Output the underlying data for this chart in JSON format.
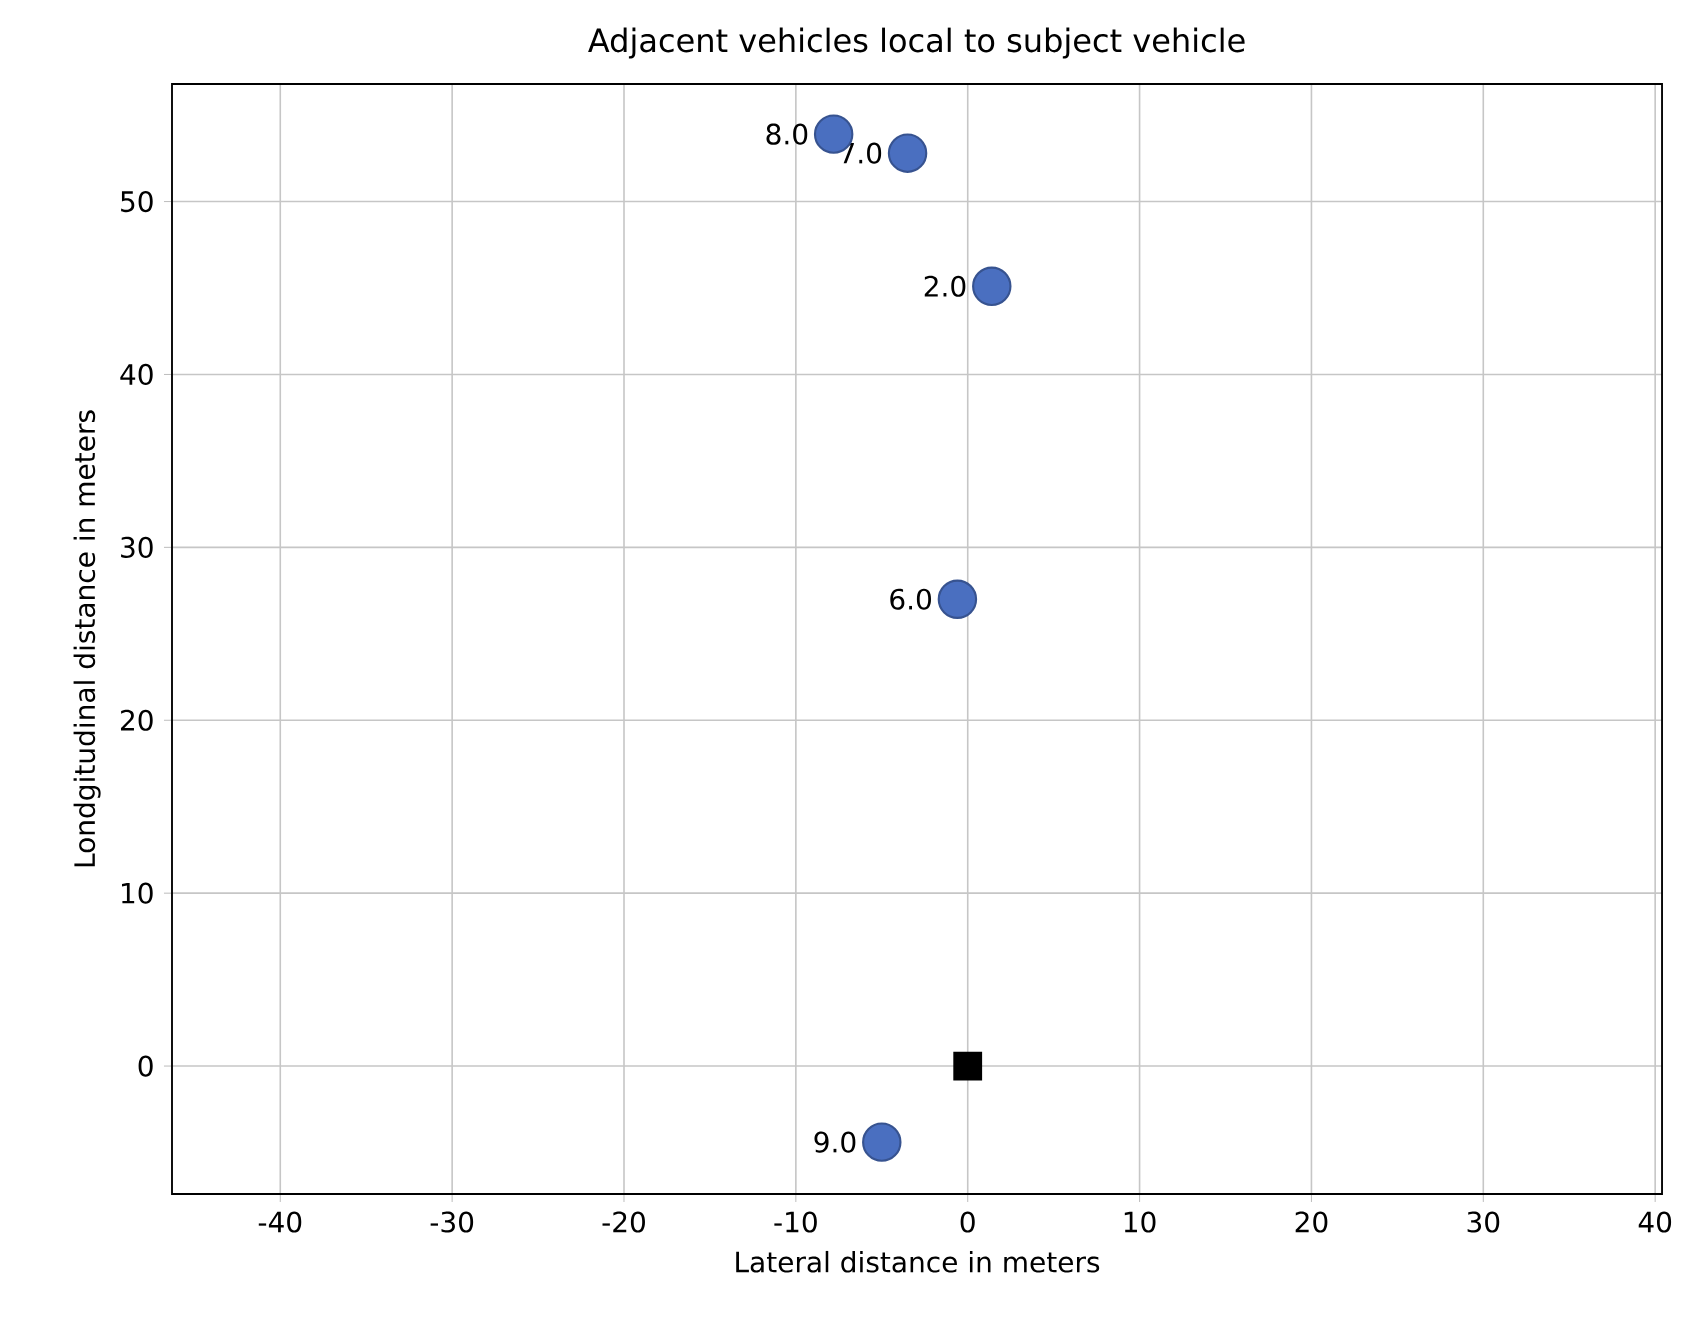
{
  "chart_data": {
    "type": "scatter",
    "title": "Adjacent vehicles local to subject vehicle",
    "xlabel": "Lateral distance in meters",
    "ylabel": "Londgitudinal distance in meters",
    "series": [
      {
        "color": "#4a6fc0",
        "marker": "circle",
        "x": [
          -7.8,
          -3.5,
          1.4,
          -0.6,
          -5.0
        ],
        "values": [
          53.9,
          52.8,
          45.1,
          27.0,
          -4.4
        ]
      },
      {
        "color": "#000000",
        "marker": "square",
        "x": [
          0
        ],
        "values": [
          0
        ]
      }
    ],
    "annotations": [
      {
        "text": "8.0",
        "x": -7.8,
        "y": 53.9
      },
      {
        "text": "7.0",
        "x": -3.5,
        "y": 52.8
      },
      {
        "text": "2.0",
        "x": 1.4,
        "y": 45.1
      },
      {
        "text": "6.0",
        "x": -0.6,
        "y": 27.0
      },
      {
        "text": "9.0",
        "x": -5.0,
        "y": -4.4
      }
    ],
    "xlim": [
      -46.3,
      40.4
    ],
    "ylim": [
      -7.4,
      56.8
    ],
    "xticks": [
      -40,
      -30,
      -20,
      -10,
      0,
      10,
      20,
      30,
      40
    ],
    "yticks": [
      0,
      10,
      20,
      30,
      40,
      50
    ],
    "grid": true
  }
}
